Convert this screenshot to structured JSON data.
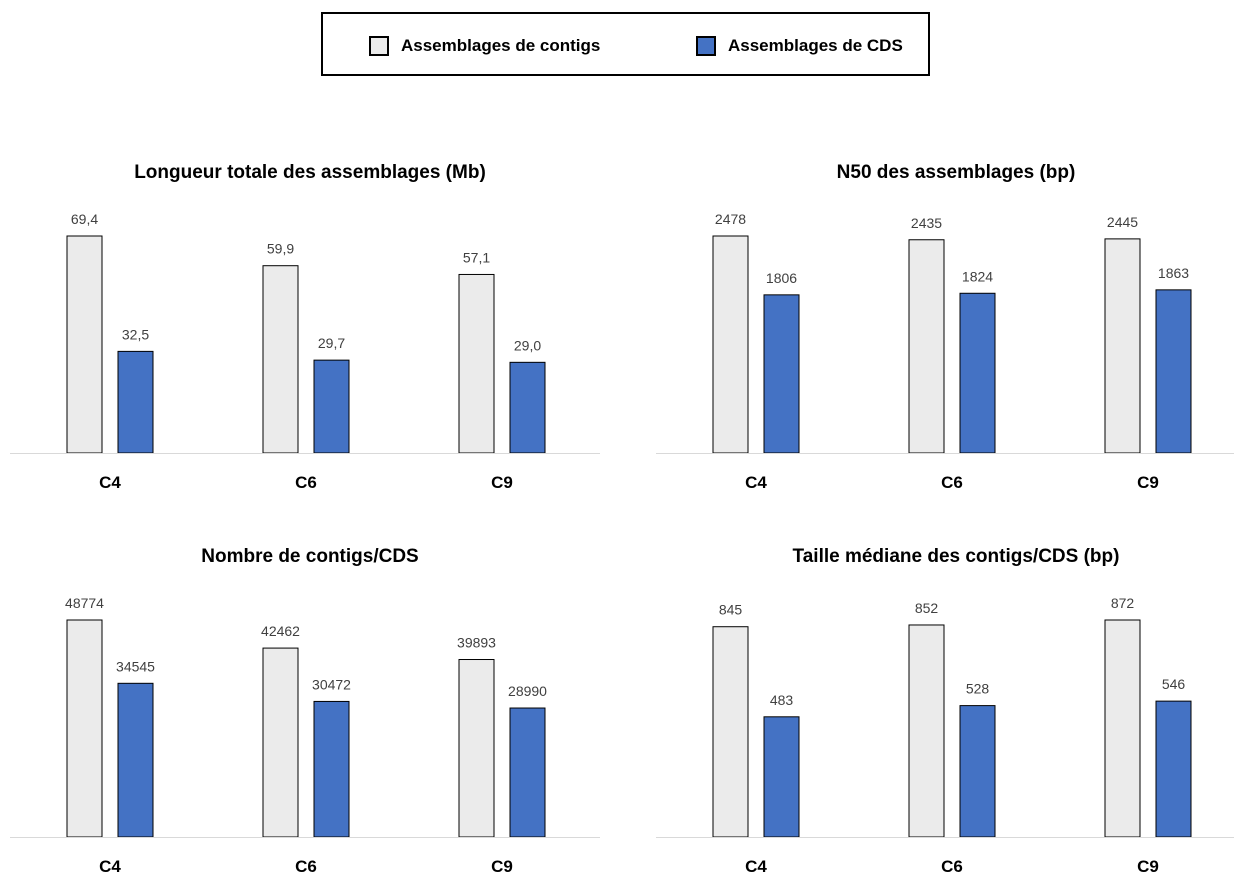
{
  "colors": {
    "contigs": "#ebebeb",
    "cds": "#4472c4",
    "bar_border": "#000000",
    "axis": "#d9d9d9",
    "label": "#404040"
  },
  "legend": {
    "entries": [
      {
        "label": "Assemblages de contigs",
        "color": "#ebebeb"
      },
      {
        "label": "Assemblages de CDS",
        "color": "#4472c4"
      }
    ]
  },
  "chart_data": [
    {
      "type": "bar",
      "title": "Longueur totale des assemblages (Mb)",
      "categories": [
        "C4",
        "C6",
        "C9"
      ],
      "series": [
        {
          "name": "Assemblages de contigs",
          "values": [
            69.4,
            59.9,
            57.1
          ],
          "labels": [
            "69,4",
            "59,9",
            "57,1"
          ]
        },
        {
          "name": "Assemblages de CDS",
          "values": [
            32.5,
            29.7,
            29.0
          ],
          "labels": [
            "32,5",
            "29,7",
            "29,0"
          ]
        }
      ],
      "ylim": [
        0,
        69.4
      ],
      "grid": false,
      "legend": "top"
    },
    {
      "type": "bar",
      "title": "N50 des assemblages (bp)",
      "categories": [
        "C4",
        "C6",
        "C9"
      ],
      "series": [
        {
          "name": "Assemblages de contigs",
          "values": [
            2478,
            2435,
            2445
          ],
          "labels": [
            "2478",
            "2435",
            "2445"
          ]
        },
        {
          "name": "Assemblages de CDS",
          "values": [
            1806,
            1824,
            1863
          ],
          "labels": [
            "1806",
            "1824",
            "1863"
          ]
        }
      ],
      "ylim": [
        0,
        2478
      ],
      "grid": false,
      "legend": "top"
    },
    {
      "type": "bar",
      "title": "Nombre de contigs/CDS",
      "categories": [
        "C4",
        "C6",
        "C9"
      ],
      "series": [
        {
          "name": "Assemblages de contigs",
          "values": [
            48774,
            42462,
            39893
          ],
          "labels": [
            "48774",
            "42462",
            "39893"
          ]
        },
        {
          "name": "Assemblages de CDS",
          "values": [
            34545,
            30472,
            28990
          ],
          "labels": [
            "34545",
            "30472",
            "28990"
          ]
        }
      ],
      "ylim": [
        0,
        48774
      ],
      "grid": false,
      "legend": "top"
    },
    {
      "type": "bar",
      "title": "Taille médiane des contigs/CDS (bp)",
      "categories": [
        "C4",
        "C6",
        "C9"
      ],
      "series": [
        {
          "name": "Assemblages de contigs",
          "values": [
            845,
            852,
            872
          ],
          "labels": [
            "845",
            "852",
            "872"
          ]
        },
        {
          "name": "Assemblages de CDS",
          "values": [
            483,
            528,
            546
          ],
          "labels": [
            "483",
            "528",
            "546"
          ]
        }
      ],
      "ylim": [
        0,
        872
      ],
      "grid": false,
      "legend": "top"
    }
  ]
}
